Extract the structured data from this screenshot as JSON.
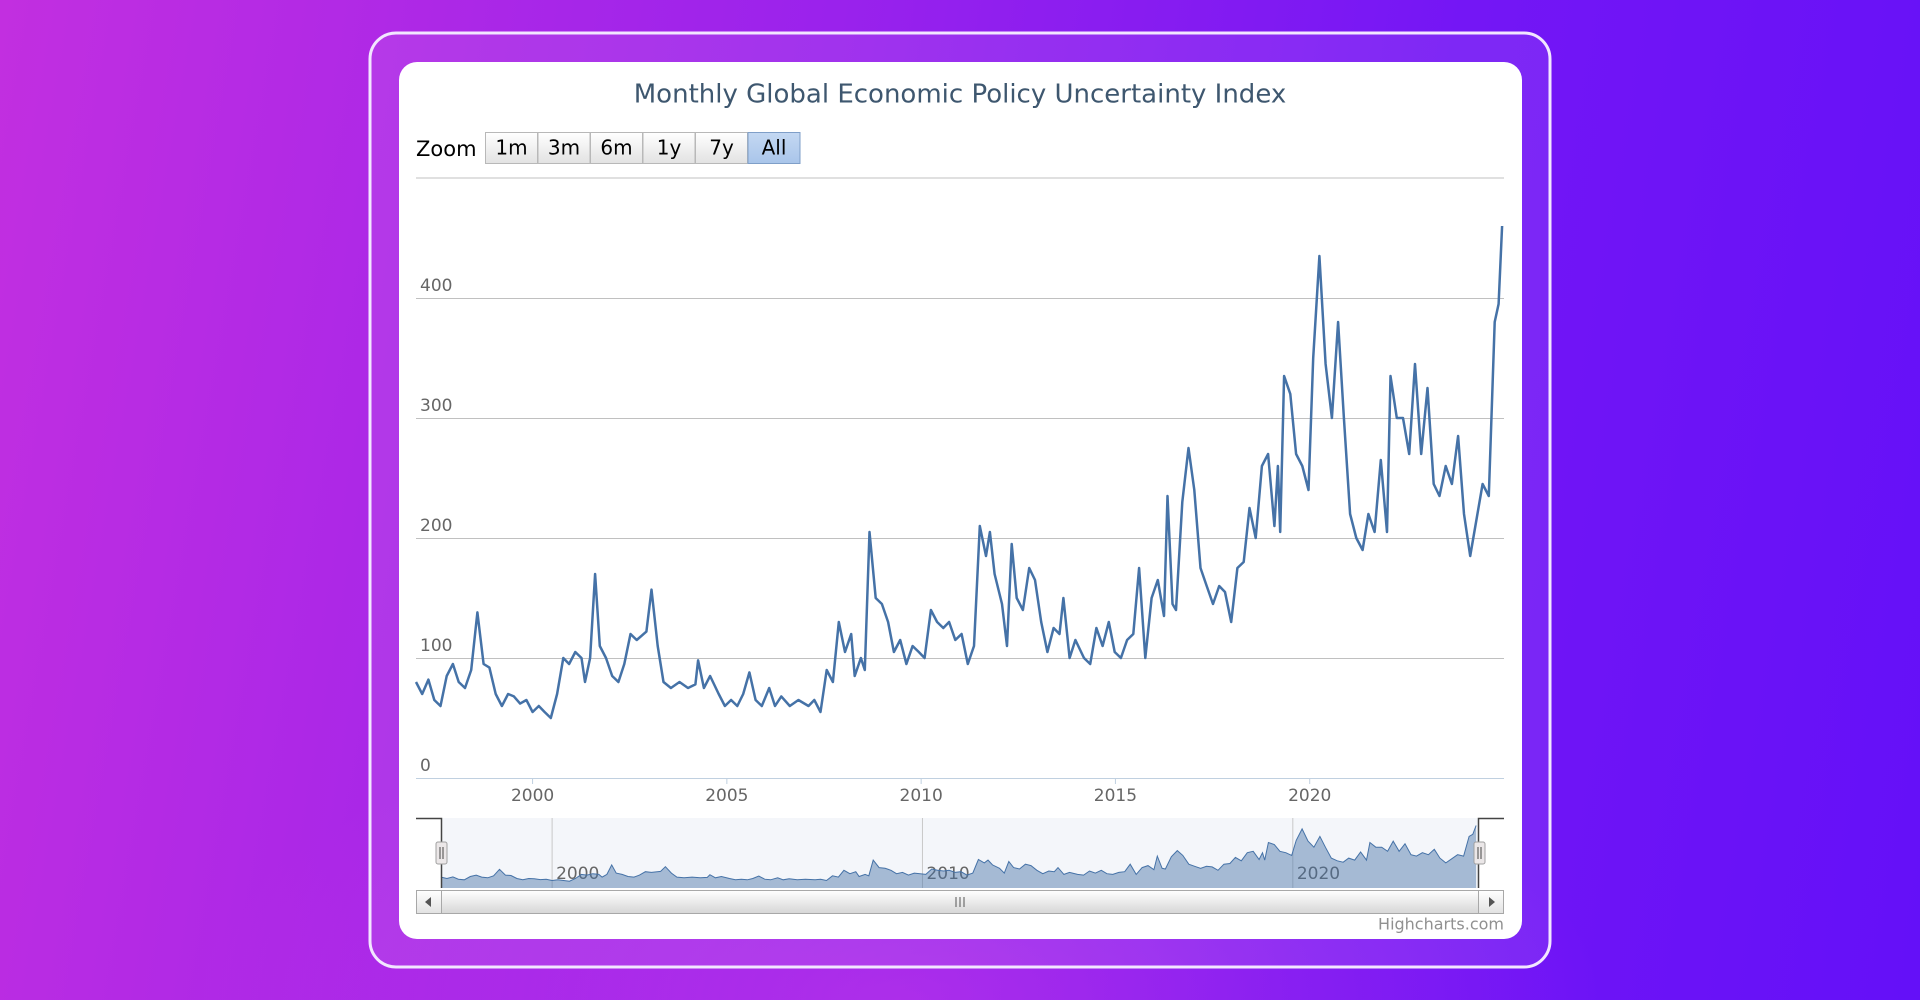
{
  "chart_data": {
    "type": "line",
    "title": "Monthly Global Economic Policy Uncertainty Index",
    "color": "#4572a7",
    "xlim": [
      1997,
      2025
    ],
    "xticks": [
      2000,
      2005,
      2010,
      2015,
      2020
    ],
    "ylim": [
      0,
      500
    ],
    "yticks": [
      0,
      100,
      200,
      300,
      400
    ],
    "grid": true,
    "navigator_xticks": [
      2000,
      2010,
      2020
    ],
    "x": [
      1997.0,
      1997.16,
      1997.32,
      1997.47,
      1997.63,
      1997.79,
      1997.95,
      1998.1,
      1998.26,
      1998.42,
      1998.58,
      1998.74,
      1998.89,
      1999.05,
      1999.21,
      1999.37,
      1999.52,
      1999.68,
      1999.84,
      2000.0,
      2000.16,
      2000.31,
      2000.47,
      2000.63,
      2000.79,
      2000.94,
      2001.1,
      2001.26,
      2001.35,
      2001.48,
      2001.61,
      2001.73,
      2001.89,
      2002.05,
      2002.21,
      2002.36,
      2002.52,
      2002.68,
      2002.93,
      2003.06,
      2003.22,
      2003.37,
      2003.56,
      2003.78,
      2004.0,
      2004.19,
      2004.26,
      2004.41,
      2004.57,
      2004.79,
      2004.95,
      2005.11,
      2005.27,
      2005.42,
      2005.58,
      2005.74,
      2005.9,
      2006.09,
      2006.24,
      2006.4,
      2006.62,
      2006.84,
      2007.1,
      2007.25,
      2007.41,
      2007.57,
      2007.73,
      2007.88,
      2008.04,
      2008.2,
      2008.29,
      2008.45,
      2008.55,
      2008.67,
      2008.83,
      2008.99,
      2009.15,
      2009.3,
      2009.46,
      2009.62,
      2009.78,
      2009.94,
      2010.09,
      2010.25,
      2010.41,
      2010.57,
      2010.72,
      2010.88,
      2011.04,
      2011.2,
      2011.36,
      2011.51,
      2011.67,
      2011.77,
      2011.89,
      2012.08,
      2012.21,
      2012.33,
      2012.46,
      2012.62,
      2012.78,
      2012.93,
      2013.09,
      2013.25,
      2013.41,
      2013.56,
      2013.66,
      2013.82,
      2013.97,
      2014.19,
      2014.35,
      2014.51,
      2014.67,
      2014.83,
      2014.98,
      2015.14,
      2015.3,
      2015.46,
      2015.61,
      2015.77,
      2015.93,
      2016.09,
      2016.25,
      2016.34,
      2016.47,
      2016.56,
      2016.72,
      2016.88,
      2017.03,
      2017.19,
      2017.35,
      2017.51,
      2017.67,
      2017.82,
      2017.98,
      2018.14,
      2018.3,
      2018.45,
      2018.61,
      2018.77,
      2018.93,
      2019.09,
      2019.18,
      2019.24,
      2019.34,
      2019.5,
      2019.65,
      2019.81,
      2019.97,
      2020.09,
      2020.25,
      2020.41,
      2020.57,
      2020.73,
      2020.88,
      2021.04,
      2021.2,
      2021.36,
      2021.51,
      2021.67,
      2021.83,
      2021.99,
      2022.08,
      2022.24,
      2022.4,
      2022.56,
      2022.71,
      2022.87,
      2023.03,
      2023.19,
      2023.34,
      2023.5,
      2023.66,
      2023.82,
      2023.97,
      2024.13,
      2024.29,
      2024.45,
      2024.61,
      2024.76,
      2024.86,
      2024.95
    ],
    "values": [
      80,
      70,
      82,
      65,
      60,
      85,
      95,
      80,
      75,
      90,
      138,
      95,
      92,
      70,
      60,
      70,
      68,
      62,
      65,
      55,
      60,
      55,
      50,
      70,
      100,
      95,
      105,
      100,
      80,
      100,
      170,
      110,
      100,
      85,
      80,
      95,
      120,
      115,
      122,
      157,
      110,
      80,
      75,
      80,
      75,
      78,
      98,
      75,
      85,
      70,
      60,
      65,
      60,
      70,
      88,
      65,
      60,
      75,
      60,
      68,
      60,
      65,
      60,
      65,
      55,
      90,
      80,
      130,
      105,
      120,
      85,
      100,
      90,
      205,
      150,
      145,
      130,
      105,
      115,
      95,
      110,
      105,
      100,
      140,
      130,
      125,
      130,
      115,
      120,
      95,
      110,
      210,
      185,
      205,
      170,
      145,
      110,
      195,
      150,
      140,
      175,
      165,
      130,
      105,
      125,
      120,
      150,
      100,
      115,
      100,
      95,
      125,
      110,
      130,
      105,
      100,
      115,
      120,
      175,
      100,
      150,
      165,
      135,
      235,
      145,
      140,
      230,
      275,
      240,
      175,
      160,
      145,
      160,
      155,
      130,
      175,
      180,
      225,
      200,
      260,
      270,
      210,
      260,
      205,
      335,
      320,
      270,
      260,
      240,
      350,
      435,
      345,
      300,
      380,
      300,
      220,
      200,
      190,
      220,
      205,
      265,
      205,
      335,
      300,
      300,
      270,
      345,
      270,
      325,
      245,
      235,
      260,
      245,
      285,
      220,
      185,
      215,
      245,
      235,
      380,
      395,
      460
    ]
  },
  "range_selector": {
    "label": "Zoom",
    "buttons": [
      "1m",
      "3m",
      "6m",
      "1y",
      "7y",
      "All"
    ],
    "selected": 5
  },
  "credits": "Highcharts.com"
}
